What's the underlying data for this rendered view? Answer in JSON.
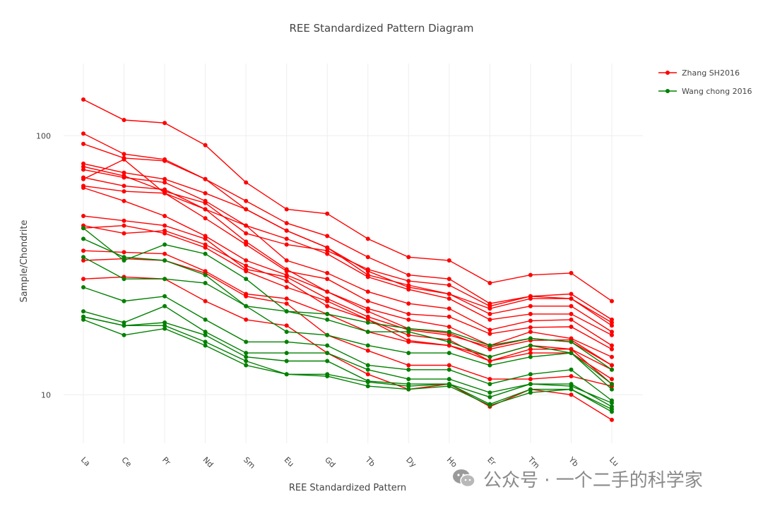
{
  "chart_data": {
    "type": "line",
    "title": "REE Standardized Pattern Diagram",
    "xlabel": "REE Standardized Pattern",
    "ylabel": "Sample/Chondrite",
    "y_scale": "log",
    "ylim": [
      6.5,
      190
    ],
    "y_ticks": [
      "10",
      "100"
    ],
    "grid": true,
    "legend_position": "top-right",
    "categories": [
      "La",
      "Ce",
      "Pr",
      "Nd",
      "Sm",
      "Eu",
      "Gd",
      "Tb",
      "Dy",
      "Ho",
      "Er",
      "Tm",
      "Yb",
      "Lu"
    ],
    "groups": [
      {
        "name": "Zhang SH2016",
        "color": "#ff0000",
        "series": [
          [
            138,
            115,
            112,
            92,
            66,
            52,
            50,
            40,
            34,
            33,
            27,
            29,
            29.5,
            23
          ],
          [
            102,
            85,
            81,
            68,
            56,
            46,
            41,
            34,
            29,
            28,
            22.5,
            24,
            24.5,
            19.5
          ],
          [
            93,
            82,
            80,
            68,
            52,
            43,
            37,
            30,
            26,
            24.5,
            21.5,
            23.5,
            23.5,
            18.5
          ],
          [
            78,
            72,
            68,
            60,
            52,
            43,
            37,
            29,
            26.5,
            24.5,
            20.5,
            22,
            22,
            17.5
          ],
          [
            76,
            70,
            61,
            55,
            42,
            38,
            36,
            30.5,
            27.5,
            26.5,
            22,
            24,
            23.5,
            19
          ],
          [
            74,
            69,
            66,
            56,
            45,
            40,
            35,
            28.5,
            25.5,
            23.5,
            19.5,
            20.5,
            20.5,
            17
          ],
          [
            69,
            64,
            62,
            52,
            45,
            33,
            29.5,
            25,
            22.5,
            21.5,
            17.8,
            19.3,
            19.5,
            15.5
          ],
          [
            68,
            81,
            60,
            48,
            38,
            30,
            28,
            23,
            20.5,
            20,
            17.2,
            18.2,
            18.3,
            15
          ],
          [
            64,
            61,
            60,
            52,
            39,
            30.5,
            25,
            21.5,
            19.5,
            18.3,
            15.5,
            17.5,
            16.5,
            14
          ],
          [
            63,
            56,
            49,
            41,
            33,
            29,
            25,
            21,
            18,
            17.3,
            15,
            16.2,
            16.3,
            13
          ],
          [
            49,
            47,
            45,
            40,
            30.5,
            28.5,
            23.5,
            20,
            17.8,
            17,
            15.3,
            16.5,
            16,
            13
          ],
          [
            45,
            42,
            43,
            38,
            31.5,
            27.5,
            22,
            19.5,
            17,
            16.3,
            13.5,
            15,
            15,
            12.5
          ],
          [
            44,
            45,
            42,
            37,
            30,
            26,
            23,
            19.5,
            16.2,
            15.5,
            14,
            15.5,
            15,
            11
          ],
          [
            36,
            35.5,
            35,
            30,
            24.5,
            23.5,
            20.5,
            17.5,
            16,
            15.5,
            13.5,
            14.5,
            14.5,
            11.5
          ],
          [
            33,
            33.5,
            33,
            29.5,
            24,
            22.5,
            17,
            14.8,
            13,
            13,
            11.5,
            11.5,
            11.8,
            10.8
          ],
          [
            28,
            28.5,
            28,
            23,
            19.5,
            18.5,
            14.5,
            12,
            10.5,
            11,
            9,
            10.5,
            10,
            8
          ]
        ]
      },
      {
        "name": "Wang chong 2016",
        "color": "#008000",
        "series": [
          [
            44,
            33,
            38,
            35,
            28,
            21,
            20.5,
            19,
            18,
            17.5,
            15.5,
            16.5,
            16,
            12.5
          ],
          [
            40,
            34,
            33,
            29,
            22,
            21,
            19.5,
            17.5,
            17.5,
            16,
            14,
            15.5,
            14.5,
            11
          ],
          [
            34,
            28,
            28,
            27,
            22,
            17.5,
            17,
            15.5,
            14.5,
            14.5,
            13,
            14,
            14.5,
            10.5
          ],
          [
            26,
            23,
            24,
            19.5,
            16,
            16,
            15.5,
            13,
            12.5,
            12.5,
            11,
            12,
            12.5,
            9.5
          ],
          [
            21,
            19,
            22,
            17.5,
            14.5,
            14.5,
            14.5,
            12.5,
            11.5,
            11.5,
            10.2,
            11,
            11,
            9
          ],
          [
            20,
            18.5,
            19,
            17,
            14,
            13.5,
            13.5,
            11.3,
            11,
            11,
            9.8,
            11,
            10.8,
            9.3
          ],
          [
            20,
            18.5,
            18.5,
            16,
            13.5,
            12,
            12,
            11.2,
            10.8,
            11,
            9.2,
            10.5,
            10.5,
            8.8
          ],
          [
            19.5,
            17,
            18,
            15.5,
            13,
            12,
            11.8,
            10.8,
            10.5,
            10.8,
            9.1,
            10.2,
            10.5,
            8.6
          ]
        ]
      }
    ]
  },
  "watermark": {
    "text": "公众号 · 一个二手的科学家"
  }
}
